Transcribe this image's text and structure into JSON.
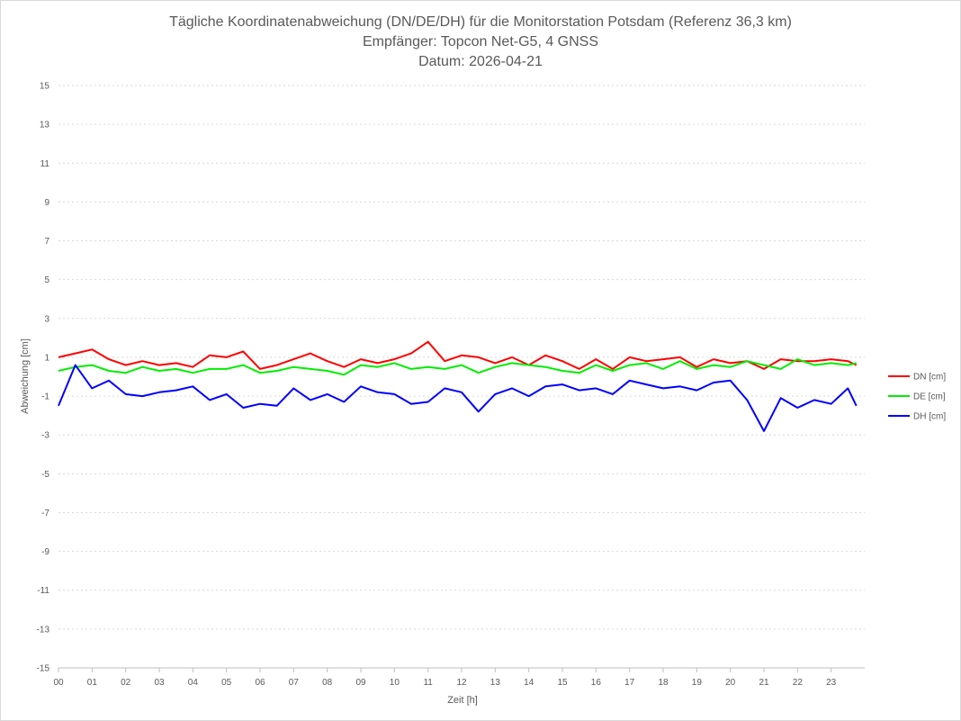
{
  "chart_data": {
    "type": "line",
    "title": [
      "Tägliche Koordinatenabweichung (DN/DE/DH) für die Monitorstation Potsdam (Referenz 36,3 km)",
      "Empfänger: Topcon Net-G5, 4 GNSS",
      "Datum: 2026-04-21"
    ],
    "xlabel": "Zeit [h]",
    "ylabel": "Abweichung [cm]",
    "xlim": [
      0,
      24
    ],
    "ylim": [
      -15,
      15
    ],
    "x_ticks": [
      "00",
      "01",
      "02",
      "03",
      "04",
      "05",
      "06",
      "07",
      "08",
      "09",
      "10",
      "11",
      "12",
      "13",
      "14",
      "15",
      "16",
      "17",
      "18",
      "19",
      "20",
      "21",
      "22",
      "23"
    ],
    "y_ticks": [
      15,
      13,
      11,
      9,
      7,
      5,
      3,
      1,
      -1,
      -3,
      -5,
      -7,
      -9,
      -11,
      -13,
      -15
    ],
    "grid": true,
    "legend_position": "right",
    "x": [
      0,
      0.5,
      1,
      1.5,
      2,
      2.5,
      3,
      3.5,
      4,
      4.5,
      5,
      5.5,
      6,
      6.5,
      7,
      7.5,
      8,
      8.5,
      9,
      9.5,
      10,
      10.5,
      11,
      11.5,
      12,
      12.5,
      13,
      13.5,
      14,
      14.5,
      15,
      15.5,
      16,
      16.5,
      17,
      17.5,
      18,
      18.5,
      19,
      19.5,
      20,
      20.5,
      21,
      21.5,
      22,
      22.5,
      23,
      23.5,
      23.75
    ],
    "series": [
      {
        "name": "DN [cm]",
        "color": "#ff0000",
        "values": [
          1.0,
          1.2,
          1.4,
          0.9,
          0.6,
          0.8,
          0.6,
          0.7,
          0.5,
          1.1,
          1.0,
          1.3,
          0.4,
          0.6,
          0.9,
          1.2,
          0.8,
          0.5,
          0.9,
          0.7,
          0.9,
          1.2,
          1.8,
          0.8,
          1.1,
          1.0,
          0.7,
          1.0,
          0.6,
          1.1,
          0.8,
          0.4,
          0.9,
          0.4,
          1.0,
          0.8,
          0.9,
          1.0,
          0.5,
          0.9,
          0.7,
          0.8,
          0.4,
          0.9,
          0.8,
          0.8,
          0.9,
          0.8,
          0.6
        ]
      },
      {
        "name": "DE [cm]",
        "color": "#00ee00",
        "values": [
          0.3,
          0.5,
          0.6,
          0.3,
          0.2,
          0.5,
          0.3,
          0.4,
          0.2,
          0.4,
          0.4,
          0.6,
          0.2,
          0.3,
          0.5,
          0.4,
          0.3,
          0.1,
          0.6,
          0.5,
          0.7,
          0.4,
          0.5,
          0.4,
          0.6,
          0.2,
          0.5,
          0.7,
          0.6,
          0.5,
          0.3,
          0.2,
          0.6,
          0.3,
          0.6,
          0.7,
          0.4,
          0.8,
          0.4,
          0.6,
          0.5,
          0.8,
          0.6,
          0.4,
          0.9,
          0.6,
          0.7,
          0.6,
          0.7
        ]
      },
      {
        "name": "DH [cm]",
        "color": "#0000ff",
        "values": [
          -1.5,
          0.6,
          -0.6,
          -0.2,
          -0.9,
          -1.0,
          -0.8,
          -0.7,
          -0.5,
          -1.2,
          -0.9,
          -1.6,
          -1.4,
          -1.5,
          -0.6,
          -1.2,
          -0.9,
          -1.3,
          -0.5,
          -0.8,
          -0.9,
          -1.4,
          -1.3,
          -0.6,
          -0.8,
          -1.8,
          -0.9,
          -0.6,
          -1.0,
          -0.5,
          -0.4,
          -0.7,
          -0.6,
          -0.9,
          -0.2,
          -0.4,
          -0.6,
          -0.5,
          -0.7,
          -0.3,
          -0.2,
          -1.2,
          -2.8,
          -1.1,
          -1.6,
          -1.2,
          -1.4,
          -0.6,
          -1.5
        ]
      }
    ]
  }
}
